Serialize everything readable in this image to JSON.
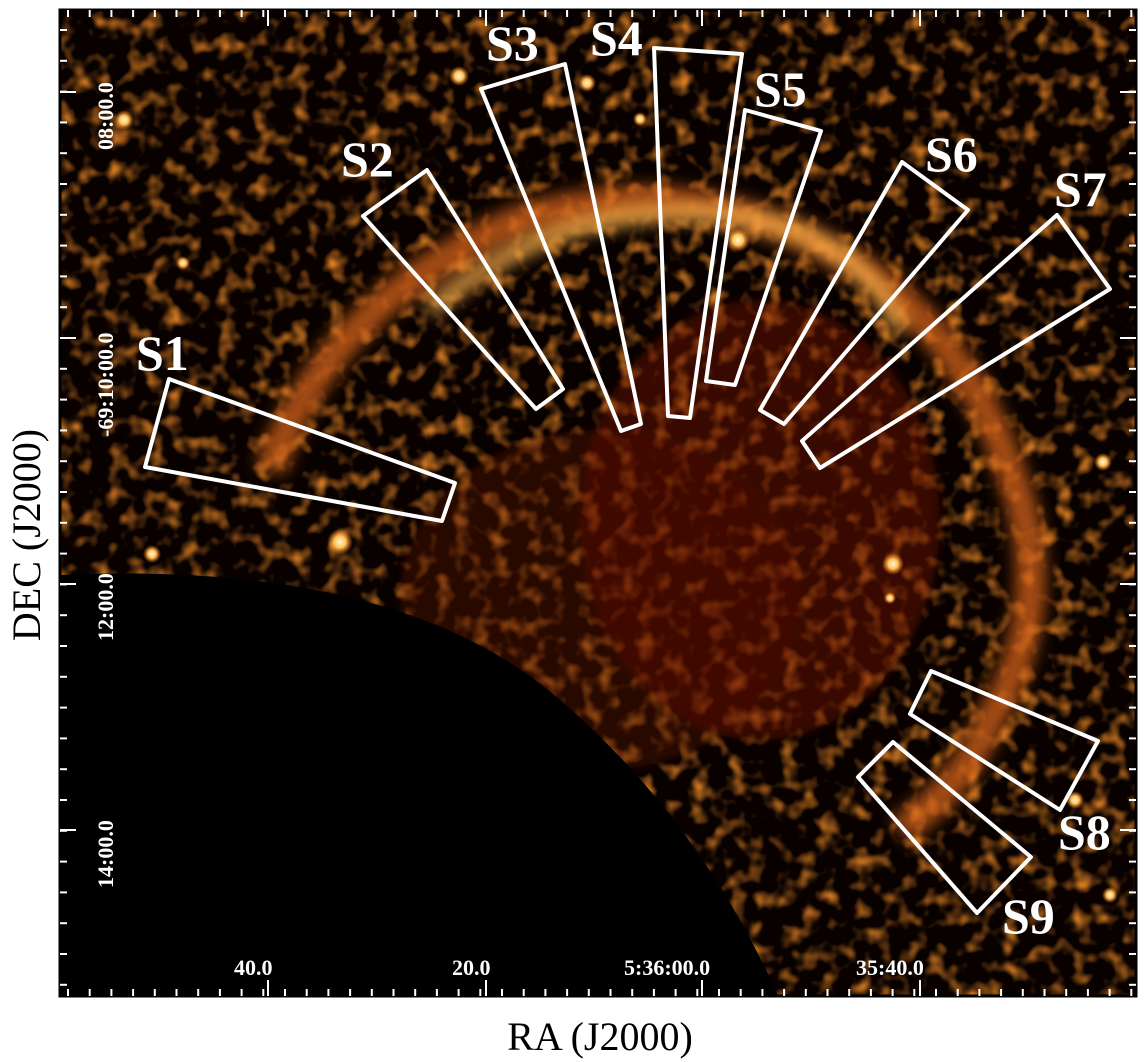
{
  "figure": {
    "x_axis_label": "RA (J2000)",
    "y_axis_label": "DEC (J2000)",
    "ra_tick_labels": [
      "40.0",
      "20.0",
      "5:36:00.0",
      "35:40.0"
    ],
    "dec_tick_labels": [
      "08:00.0",
      "-69:10:00.0",
      "12:00.0",
      "14:00.0"
    ],
    "regions": [
      "S1",
      "S2",
      "S3",
      "S4",
      "S5",
      "S6",
      "S7",
      "S8",
      "S9"
    ],
    "colors": {
      "background": "#000000",
      "emission_low": "#4a0a00",
      "emission_mid": "#c4420a",
      "emission_high": "#ffd27a",
      "region_outline": "#ffffff"
    }
  }
}
